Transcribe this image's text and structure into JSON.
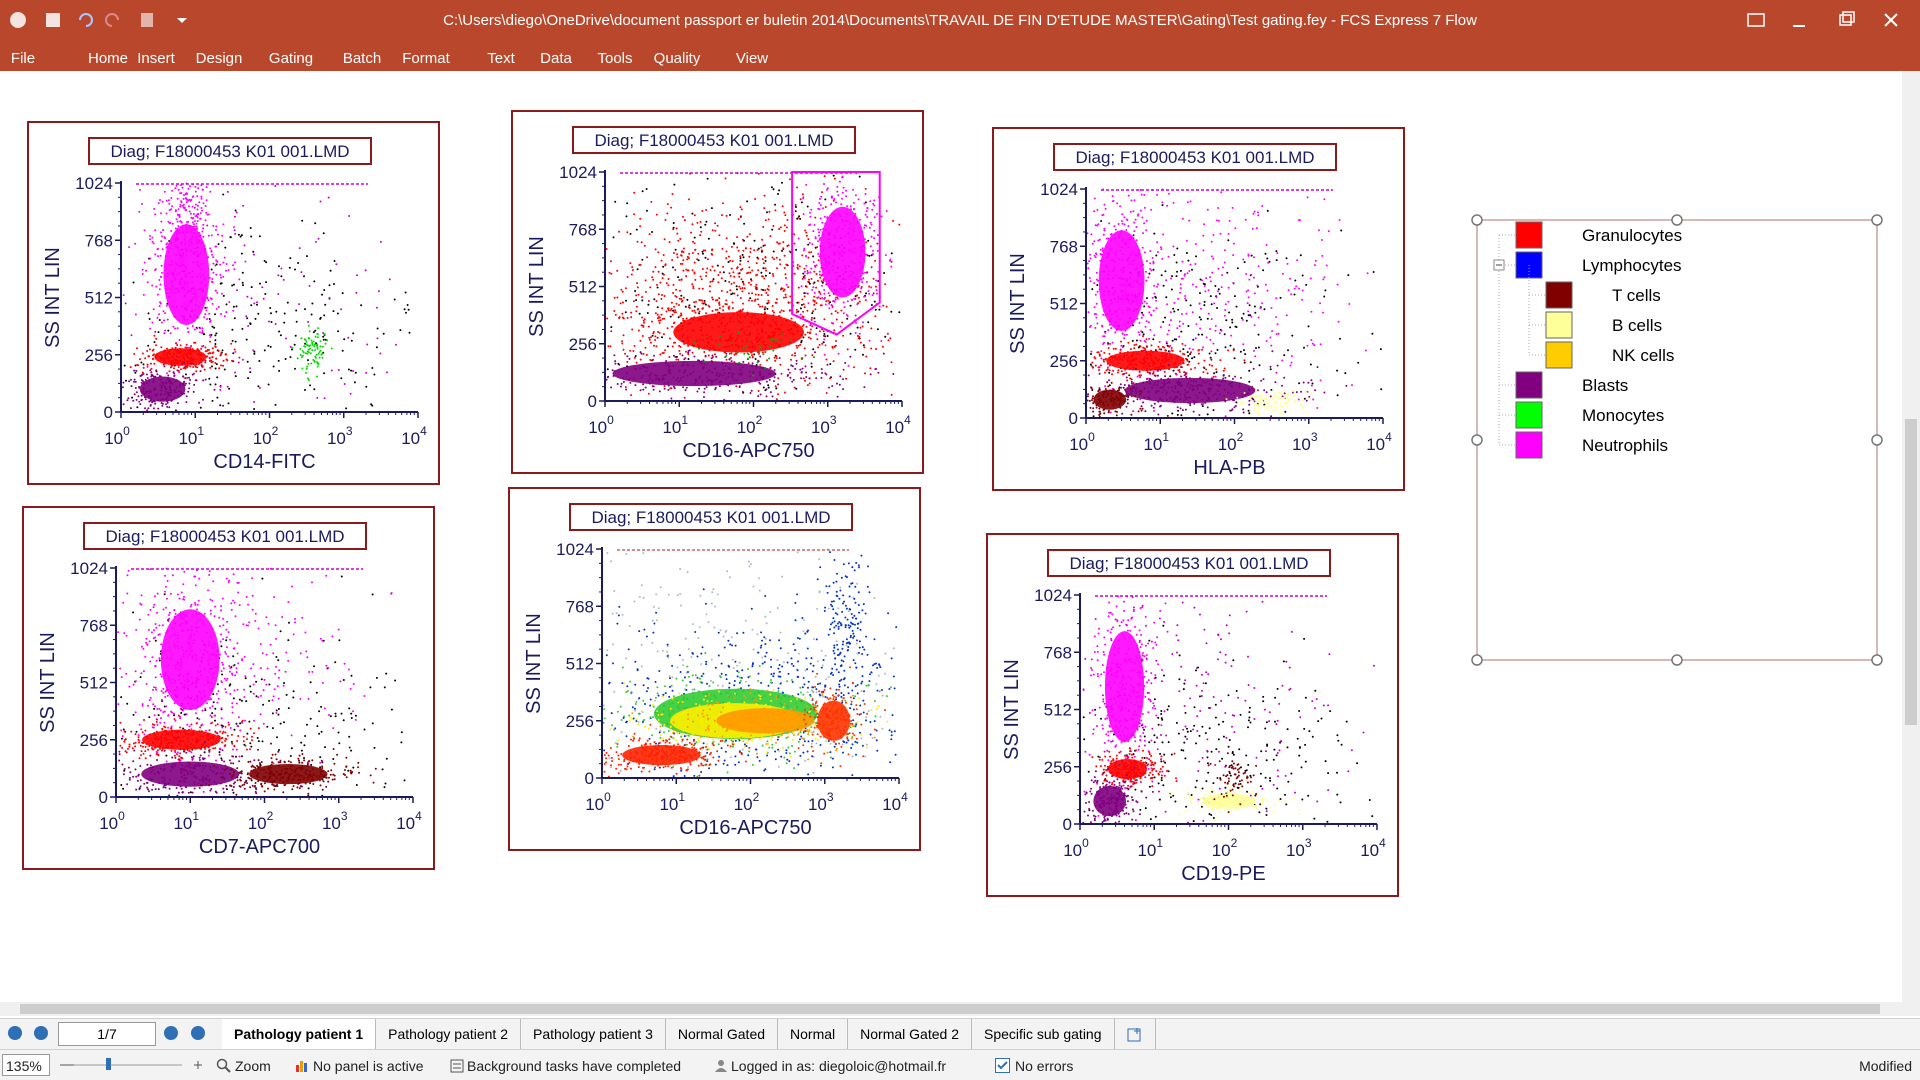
{
  "window": {
    "title": "C:\\Users\\diego\\OneDrive\\document passport er buletin 2014\\Documents\\TRAVAIL DE FIN D'ETUDE MASTER\\Gating\\Test gating.fey - FCS Express 7 Flow"
  },
  "menu": [
    "File",
    "Home",
    "Insert",
    "Design",
    "Gating",
    "Batch",
    "Format",
    "Text",
    "Data",
    "Tools",
    "Quality",
    "View"
  ],
  "plots": [
    {
      "title": "Diag; F18000453 K01 001.LMD",
      "x_label": "CD14-FITC",
      "y_label": "SS INT LIN",
      "y_ticks": [
        "1024",
        "768",
        "512",
        "256",
        "0"
      ],
      "x_ticks": [
        {
          "base": "10",
          "exp": "0"
        },
        {
          "base": "10",
          "exp": "1"
        },
        {
          "base": "10",
          "exp": "2"
        },
        {
          "base": "10",
          "exp": "3"
        },
        {
          "base": "10",
          "exp": "4"
        }
      ]
    },
    {
      "title": "Diag; F18000453 K01 001.LMD",
      "x_label": "CD16-APC750",
      "y_label": "SS INT LIN",
      "y_ticks": [
        "1024",
        "768",
        "512",
        "256",
        "0"
      ],
      "x_ticks": [
        {
          "base": "10",
          "exp": "0"
        },
        {
          "base": "10",
          "exp": "1"
        },
        {
          "base": "10",
          "exp": "2"
        },
        {
          "base": "10",
          "exp": "3"
        },
        {
          "base": "10",
          "exp": "4"
        }
      ]
    },
    {
      "title": "Diag; F18000453 K01 001.LMD",
      "x_label": "HLA-PB",
      "y_label": "SS INT LIN",
      "y_ticks": [
        "1024",
        "768",
        "512",
        "256",
        "0"
      ],
      "x_ticks": [
        {
          "base": "10",
          "exp": "0"
        },
        {
          "base": "10",
          "exp": "1"
        },
        {
          "base": "10",
          "exp": "2"
        },
        {
          "base": "10",
          "exp": "3"
        },
        {
          "base": "10",
          "exp": "4"
        }
      ]
    },
    {
      "title": "Diag; F18000453 K01 001.LMD",
      "x_label": "CD7-APC700",
      "y_label": "SS INT LIN",
      "y_ticks": [
        "1024",
        "768",
        "512",
        "256",
        "0"
      ],
      "x_ticks": [
        {
          "base": "10",
          "exp": "0"
        },
        {
          "base": "10",
          "exp": "1"
        },
        {
          "base": "10",
          "exp": "2"
        },
        {
          "base": "10",
          "exp": "3"
        },
        {
          "base": "10",
          "exp": "4"
        }
      ]
    },
    {
      "title": "Diag; F18000453 K01 001.LMD",
      "x_label": "CD16-APC750",
      "y_label": "SS INT LIN",
      "y_ticks": [
        "1024",
        "768",
        "512",
        "256",
        "0"
      ],
      "x_ticks": [
        {
          "base": "10",
          "exp": "0"
        },
        {
          "base": "10",
          "exp": "1"
        },
        {
          "base": "10",
          "exp": "2"
        },
        {
          "base": "10",
          "exp": "3"
        },
        {
          "base": "10",
          "exp": "4"
        }
      ]
    },
    {
      "title": "Diag; F18000453 K01 001.LMD",
      "x_label": "CD19-PE",
      "y_label": "SS INT LIN",
      "y_ticks": [
        "1024",
        "768",
        "512",
        "256",
        "0"
      ],
      "x_ticks": [
        {
          "base": "10",
          "exp": "0"
        },
        {
          "base": "10",
          "exp": "1"
        },
        {
          "base": "10",
          "exp": "2"
        },
        {
          "base": "10",
          "exp": "3"
        },
        {
          "base": "10",
          "exp": "4"
        }
      ]
    }
  ],
  "legend": [
    {
      "label": "Granulocytes",
      "color": "#ff0000",
      "level": 0
    },
    {
      "label": "Lymphocytes",
      "color": "#0000ff",
      "level": 0
    },
    {
      "label": "T cells",
      "color": "#800000",
      "level": 1
    },
    {
      "label": "B cells",
      "color": "#ffff99",
      "level": 1
    },
    {
      "label": "NK cells",
      "color": "#ffcc00",
      "level": 1
    },
    {
      "label": "Blasts",
      "color": "#800080",
      "level": 0
    },
    {
      "label": "Monocytes",
      "color": "#00ff00",
      "level": 0
    },
    {
      "label": "Neutrophils",
      "color": "#ff00ff",
      "level": 0
    }
  ],
  "tabs": {
    "page": "1/7",
    "active": 0,
    "items": [
      "Pathology patient 1",
      "Pathology patient 2",
      "Pathology patient 3",
      "Normal Gated",
      "Normal",
      "Normal Gated 2",
      "Specific sub gating"
    ]
  },
  "status": {
    "zoom": "135%",
    "zoom_label": "Zoom",
    "panel": "No panel is active",
    "tasks": "Background tasks have completed",
    "login": "Logged in as: diegoloic@hotmail.fr",
    "errors": "No errors",
    "state": "Modified"
  }
}
